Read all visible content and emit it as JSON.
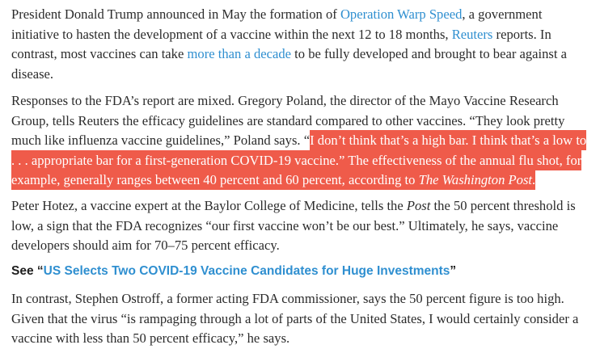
{
  "paragraph1": {
    "t1": "President Donald Trump announced in May the formation of ",
    "link1": "Operation Warp Speed",
    "t2": ", a government initiative to hasten the development of a vaccine within the next 12 to 18 months, ",
    "link2": "Reuters",
    "t3": " reports. In contrast, most vaccines can take ",
    "link3": "more than a decade",
    "t4": " to be fully developed and brought to bear against a disease."
  },
  "paragraph2": {
    "t1": "Responses to the FDA’s report are mixed. Gregory Poland, the director of the Mayo Vaccine Research Group, tells Reuters the efficacy guidelines are standard compared to other vaccines. “They look pretty much like influenza vaccine guidelines,” Poland says. “",
    "highlight": "I don’t think that’s a high bar. I think that’s a low to . . . appropriate bar for a first-generation COVID-19 vaccine.” The effectiveness of the annual flu shot, for example, generally ranges between 40 percent and 60 percent, according to ",
    "highlight_italic": "The Washington Post",
    "highlight_end": "."
  },
  "paragraph3": {
    "t1": "Peter Hotez, a vaccine expert at the Baylor College of Medicine, tells the ",
    "italic": "Post",
    "t2": " the 50 percent threshold is low, a sign that the FDA recognizes “our first vaccine won’t be our best.” Ultimately, he says, vaccine developers should aim for 70–75 percent efficacy."
  },
  "see_also": {
    "prefix": "See “",
    "link": "US Selects Two COVID-19 Vaccine Candidates for Huge Investments",
    "suffix": "”"
  },
  "paragraph4": {
    "t1": "In contrast, Stephen Ostroff, a former acting FDA commissioner, says the 50 percent figure is too high. Given that the virus “is rampaging through a lot of parts of the United States, I would certainly consider a vaccine with less than 50 percent efficacy,” he says."
  },
  "colors": {
    "link": "#2f8fd0",
    "highlight": "#ef5b4a",
    "text": "#2b2b2b"
  }
}
